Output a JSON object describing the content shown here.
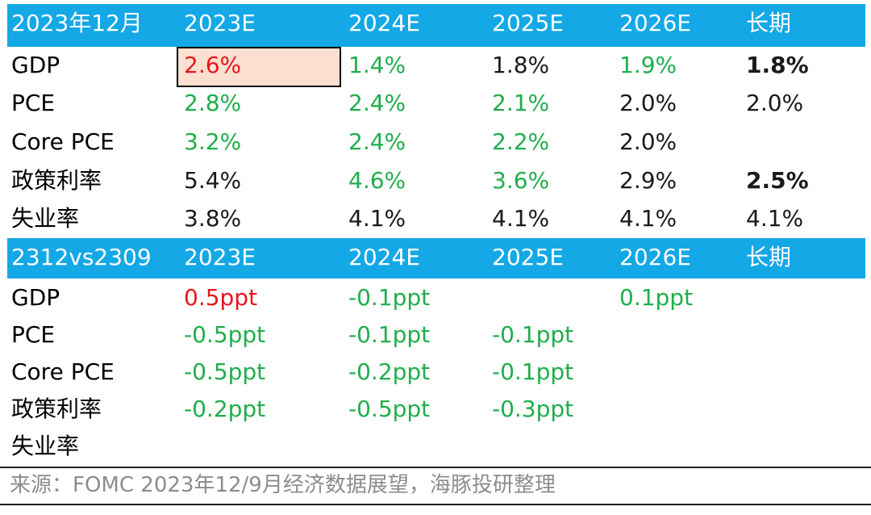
{
  "table1": {
    "header": [
      "2023年12月",
      "2023E",
      "2024E",
      "2025E",
      "2026E",
      "长期"
    ],
    "rows": [
      {
        "label": "GDP",
        "cells": [
          "2.6%",
          "1.4%",
          "1.8%",
          "1.9%",
          "1.8%"
        ]
      },
      {
        "label": "PCE",
        "cells": [
          "2.8%",
          "2.4%",
          "2.1%",
          "2.0%",
          "2.0%"
        ]
      },
      {
        "label": "Core PCE",
        "cells": [
          "3.2%",
          "2.4%",
          "2.2%",
          "2.0%",
          ""
        ]
      },
      {
        "label": "政策利率",
        "cells": [
          "5.4%",
          "4.6%",
          "3.6%",
          "2.9%",
          "2.5%"
        ]
      },
      {
        "label": "失业率",
        "cells": [
          "3.8%",
          "4.1%",
          "4.1%",
          "4.1%",
          "4.1%"
        ]
      }
    ]
  },
  "table2": {
    "header": [
      "2312vs2309",
      "2023E",
      "2024E",
      "2025E",
      "2026E",
      "长期"
    ],
    "rows": [
      {
        "label": "GDP",
        "cells": [
          "0.5ppt",
          "-0.1ppt",
          "",
          "0.1ppt",
          ""
        ]
      },
      {
        "label": "PCE",
        "cells": [
          "-0.5ppt",
          "-0.1ppt",
          "-0.1ppt",
          "",
          ""
        ]
      },
      {
        "label": "Core PCE",
        "cells": [
          "-0.5ppt",
          "-0.2ppt",
          "-0.1ppt",
          "",
          ""
        ]
      },
      {
        "label": "政策利率",
        "cells": [
          "-0.2ppt",
          "-0.5ppt",
          "-0.3ppt",
          "",
          ""
        ]
      },
      {
        "label": "失业率",
        "cells": [
          "",
          "",
          "",
          "",
          ""
        ]
      }
    ]
  },
  "colors": {
    "header_bg": "#14a8e6",
    "highlight_bg": "#fbe0d1",
    "green": "#1fae4b",
    "red": "#e8141c",
    "source_text": "#8c8c8c"
  },
  "source": "来源：FOMC 2023年12/9月经济数据展望，海豚投研整理"
}
